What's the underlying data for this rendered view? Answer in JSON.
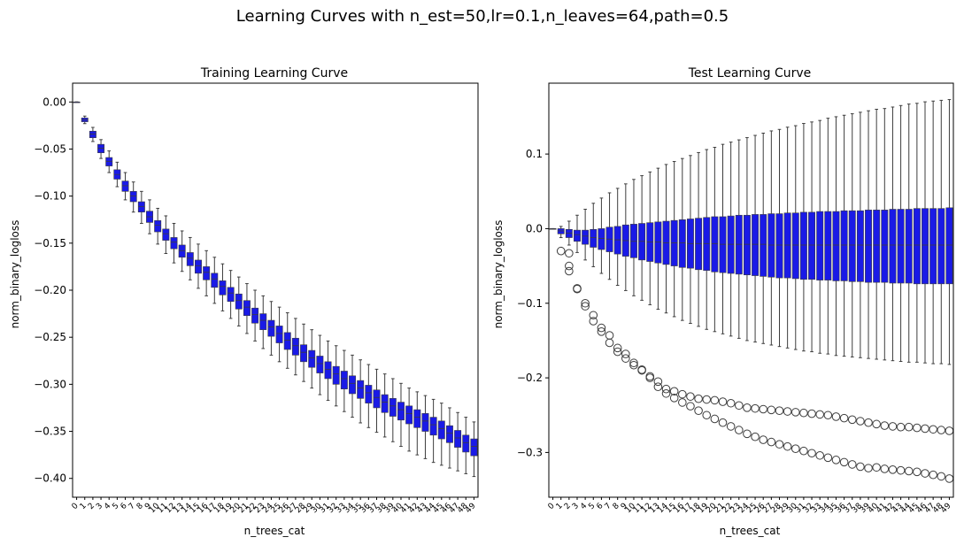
{
  "figure": {
    "title": "Learning Curves with n_est=50,lr=0.1,n_leaves=64,path=0.5"
  },
  "colors": {
    "box_fill": "#1a1ae6",
    "box_edge": "#3d3d3d",
    "axis": "#000000"
  },
  "chart_data": [
    {
      "type": "box",
      "title": "Training Learning Curve",
      "xlabel": "n_trees_cat",
      "ylabel": "norm_binary_logloss",
      "ylim": [
        -0.42,
        0.02
      ],
      "yticks": [
        0.0,
        -0.05,
        -0.1,
        -0.15,
        -0.2,
        -0.25,
        -0.3,
        -0.35,
        -0.4
      ],
      "ytick_labels": [
        "0.00",
        "−0.05",
        "−0.10",
        "−0.15",
        "−0.20",
        "−0.25",
        "−0.30",
        "−0.35",
        "−0.40"
      ],
      "categories": [
        "0",
        "1",
        "2",
        "3",
        "4",
        "5",
        "6",
        "7",
        "8",
        "9",
        "10",
        "11",
        "12",
        "13",
        "14",
        "15",
        "16",
        "17",
        "18",
        "19",
        "20",
        "21",
        "22",
        "23",
        "24",
        "25",
        "26",
        "27",
        "28",
        "29",
        "30",
        "31",
        "32",
        "33",
        "34",
        "35",
        "36",
        "37",
        "38",
        "39",
        "40",
        "41",
        "42",
        "43",
        "44",
        "45",
        "46",
        "47",
        "48",
        "49"
      ],
      "median": [
        0.0,
        -0.019,
        -0.034,
        -0.049,
        -0.063,
        -0.077,
        -0.089,
        -0.1,
        -0.111,
        -0.122,
        -0.131,
        -0.14,
        -0.149,
        -0.158,
        -0.166,
        -0.174,
        -0.181,
        -0.188,
        -0.196,
        -0.203,
        -0.211,
        -0.218,
        -0.226,
        -0.232,
        -0.239,
        -0.246,
        -0.253,
        -0.259,
        -0.266,
        -0.272,
        -0.278,
        -0.284,
        -0.289,
        -0.294,
        -0.299,
        -0.304,
        -0.309,
        -0.314,
        -0.319,
        -0.323,
        -0.327,
        -0.331,
        -0.335,
        -0.339,
        -0.343,
        -0.347,
        -0.352,
        -0.357,
        -0.362,
        -0.366
      ],
      "q1": [
        0.0,
        -0.021,
        -0.038,
        -0.054,
        -0.068,
        -0.082,
        -0.095,
        -0.106,
        -0.117,
        -0.128,
        -0.138,
        -0.147,
        -0.156,
        -0.165,
        -0.174,
        -0.182,
        -0.189,
        -0.197,
        -0.205,
        -0.212,
        -0.22,
        -0.227,
        -0.235,
        -0.242,
        -0.249,
        -0.256,
        -0.263,
        -0.269,
        -0.276,
        -0.282,
        -0.288,
        -0.294,
        -0.3,
        -0.305,
        -0.31,
        -0.315,
        -0.32,
        -0.325,
        -0.33,
        -0.334,
        -0.338,
        -0.342,
        -0.346,
        -0.35,
        -0.354,
        -0.358,
        -0.362,
        -0.367,
        -0.372,
        -0.376
      ],
      "q3": [
        0.0,
        -0.017,
        -0.031,
        -0.045,
        -0.059,
        -0.072,
        -0.084,
        -0.095,
        -0.106,
        -0.116,
        -0.126,
        -0.135,
        -0.144,
        -0.152,
        -0.16,
        -0.168,
        -0.175,
        -0.182,
        -0.19,
        -0.197,
        -0.204,
        -0.211,
        -0.219,
        -0.225,
        -0.232,
        -0.238,
        -0.245,
        -0.251,
        -0.258,
        -0.264,
        -0.27,
        -0.276,
        -0.281,
        -0.286,
        -0.291,
        -0.296,
        -0.301,
        -0.306,
        -0.311,
        -0.315,
        -0.319,
        -0.323,
        -0.327,
        -0.331,
        -0.335,
        -0.339,
        -0.344,
        -0.349,
        -0.354,
        -0.358
      ],
      "whisker_low": [
        0.0,
        -0.023,
        -0.042,
        -0.06,
        -0.075,
        -0.09,
        -0.104,
        -0.117,
        -0.129,
        -0.14,
        -0.151,
        -0.161,
        -0.171,
        -0.18,
        -0.189,
        -0.198,
        -0.206,
        -0.214,
        -0.222,
        -0.23,
        -0.238,
        -0.246,
        -0.254,
        -0.262,
        -0.269,
        -0.276,
        -0.283,
        -0.29,
        -0.297,
        -0.304,
        -0.311,
        -0.317,
        -0.323,
        -0.329,
        -0.335,
        -0.341,
        -0.346,
        -0.351,
        -0.356,
        -0.361,
        -0.366,
        -0.371,
        -0.375,
        -0.379,
        -0.383,
        -0.386,
        -0.389,
        -0.392,
        -0.395,
        -0.398
      ],
      "whisker_high": [
        0.0,
        -0.015,
        -0.027,
        -0.04,
        -0.052,
        -0.064,
        -0.075,
        -0.085,
        -0.095,
        -0.104,
        -0.113,
        -0.121,
        -0.129,
        -0.137,
        -0.144,
        -0.151,
        -0.158,
        -0.165,
        -0.172,
        -0.179,
        -0.186,
        -0.193,
        -0.2,
        -0.206,
        -0.212,
        -0.218,
        -0.224,
        -0.23,
        -0.236,
        -0.242,
        -0.248,
        -0.254,
        -0.259,
        -0.264,
        -0.269,
        -0.274,
        -0.279,
        -0.284,
        -0.289,
        -0.294,
        -0.299,
        -0.304,
        -0.308,
        -0.312,
        -0.316,
        -0.32,
        -0.325,
        -0.33,
        -0.335,
        -0.34
      ]
    },
    {
      "type": "box",
      "title": "Test Learning Curve",
      "xlabel": "n_trees_cat",
      "ylabel": "norm_binary_logloss",
      "ylim": [
        -0.36,
        0.195
      ],
      "yticks": [
        0.1,
        0.0,
        -0.1,
        -0.2,
        -0.3
      ],
      "ytick_labels": [
        "0.1",
        "0.0",
        "−0.1",
        "−0.2",
        "−0.3"
      ],
      "categories": [
        "0",
        "1",
        "2",
        "3",
        "4",
        "5",
        "6",
        "7",
        "8",
        "9",
        "10",
        "11",
        "12",
        "13",
        "14",
        "15",
        "16",
        "17",
        "18",
        "19",
        "20",
        "21",
        "22",
        "23",
        "24",
        "25",
        "26",
        "27",
        "28",
        "29",
        "30",
        "31",
        "32",
        "33",
        "34",
        "35",
        "36",
        "37",
        "38",
        "39",
        "40",
        "41",
        "42",
        "43",
        "44",
        "45",
        "46",
        "47",
        "48",
        "49"
      ],
      "median": [
        0.0,
        -0.003,
        -0.006,
        -0.008,
        -0.01,
        -0.012,
        -0.013,
        -0.014,
        -0.015,
        -0.016,
        -0.017,
        -0.017,
        -0.018,
        -0.018,
        -0.019,
        -0.019,
        -0.019,
        -0.02,
        -0.02,
        -0.02,
        -0.02,
        -0.021,
        -0.021,
        -0.021,
        -0.021,
        -0.021,
        -0.021,
        -0.022,
        -0.022,
        -0.022,
        -0.022,
        -0.022,
        -0.022,
        -0.022,
        -0.022,
        -0.022,
        -0.022,
        -0.022,
        -0.022,
        -0.022,
        -0.022,
        -0.022,
        -0.022,
        -0.022,
        -0.022,
        -0.022,
        -0.022,
        -0.022,
        -0.022,
        -0.022
      ],
      "q1": [
        0.0,
        -0.007,
        -0.012,
        -0.017,
        -0.021,
        -0.025,
        -0.028,
        -0.031,
        -0.034,
        -0.037,
        -0.039,
        -0.042,
        -0.044,
        -0.046,
        -0.048,
        -0.05,
        -0.052,
        -0.053,
        -0.055,
        -0.056,
        -0.058,
        -0.059,
        -0.06,
        -0.061,
        -0.062,
        -0.063,
        -0.064,
        -0.065,
        -0.066,
        -0.066,
        -0.067,
        -0.068,
        -0.068,
        -0.069,
        -0.069,
        -0.07,
        -0.07,
        -0.071,
        -0.071,
        -0.072,
        -0.072,
        -0.072,
        -0.073,
        -0.073,
        -0.073,
        -0.074,
        -0.074,
        -0.074,
        -0.074,
        -0.074
      ],
      "q3": [
        0.0,
        0.0,
        -0.001,
        -0.002,
        -0.002,
        -0.001,
        0.0,
        0.002,
        0.003,
        0.005,
        0.006,
        0.007,
        0.008,
        0.009,
        0.01,
        0.011,
        0.012,
        0.013,
        0.014,
        0.015,
        0.016,
        0.016,
        0.017,
        0.018,
        0.018,
        0.019,
        0.019,
        0.02,
        0.02,
        0.021,
        0.021,
        0.022,
        0.022,
        0.023,
        0.023,
        0.023,
        0.024,
        0.024,
        0.024,
        0.025,
        0.025,
        0.025,
        0.026,
        0.026,
        0.026,
        0.027,
        0.027,
        0.027,
        0.027,
        0.028
      ],
      "whisker_low": [
        0.0,
        -0.012,
        -0.022,
        -0.032,
        -0.042,
        -0.051,
        -0.06,
        -0.068,
        -0.076,
        -0.083,
        -0.09,
        -0.096,
        -0.102,
        -0.108,
        -0.113,
        -0.118,
        -0.123,
        -0.127,
        -0.131,
        -0.135,
        -0.138,
        -0.141,
        -0.144,
        -0.147,
        -0.15,
        -0.152,
        -0.154,
        -0.156,
        -0.158,
        -0.16,
        -0.162,
        -0.164,
        -0.165,
        -0.167,
        -0.168,
        -0.17,
        -0.171,
        -0.172,
        -0.173,
        -0.174,
        -0.175,
        -0.176,
        -0.177,
        -0.178,
        -0.179,
        -0.179,
        -0.18,
        -0.181,
        -0.181,
        -0.182
      ],
      "whisker_high": [
        0.0,
        0.003,
        0.01,
        0.018,
        0.026,
        0.034,
        0.041,
        0.048,
        0.054,
        0.06,
        0.066,
        0.071,
        0.076,
        0.081,
        0.086,
        0.09,
        0.094,
        0.098,
        0.102,
        0.106,
        0.109,
        0.113,
        0.116,
        0.119,
        0.122,
        0.125,
        0.128,
        0.131,
        0.133,
        0.136,
        0.138,
        0.141,
        0.143,
        0.145,
        0.148,
        0.15,
        0.152,
        0.154,
        0.156,
        0.158,
        0.16,
        0.161,
        0.163,
        0.165,
        0.167,
        0.168,
        0.17,
        0.171,
        0.172,
        0.173
      ],
      "outliers": [
        [
          1,
          -0.03
        ],
        [
          2,
          -0.033
        ],
        [
          2,
          -0.05
        ],
        [
          2,
          -0.057
        ],
        [
          3,
          -0.08
        ],
        [
          3,
          -0.081
        ],
        [
          4,
          -0.1
        ],
        [
          4,
          -0.104
        ],
        [
          5,
          -0.116
        ],
        [
          5,
          -0.124
        ],
        [
          6,
          -0.133
        ],
        [
          6,
          -0.138
        ],
        [
          7,
          -0.143
        ],
        [
          7,
          -0.153
        ],
        [
          8,
          -0.16
        ],
        [
          8,
          -0.165
        ],
        [
          9,
          -0.168
        ],
        [
          9,
          -0.174
        ],
        [
          10,
          -0.18
        ],
        [
          10,
          -0.183
        ],
        [
          11,
          -0.19
        ],
        [
          11,
          -0.189
        ],
        [
          12,
          -0.198
        ],
        [
          12,
          -0.2
        ],
        [
          13,
          -0.205
        ],
        [
          13,
          -0.212
        ],
        [
          14,
          -0.215
        ],
        [
          14,
          -0.221
        ],
        [
          15,
          -0.218
        ],
        [
          15,
          -0.227
        ],
        [
          16,
          -0.222
        ],
        [
          16,
          -0.233
        ],
        [
          17,
          -0.225
        ],
        [
          17,
          -0.238
        ],
        [
          18,
          -0.228
        ],
        [
          18,
          -0.244
        ],
        [
          19,
          -0.229
        ],
        [
          19,
          -0.25
        ],
        [
          20,
          -0.23
        ],
        [
          20,
          -0.255
        ],
        [
          21,
          -0.232
        ],
        [
          21,
          -0.26
        ],
        [
          22,
          -0.234
        ],
        [
          22,
          -0.265
        ],
        [
          23,
          -0.237
        ],
        [
          23,
          -0.27
        ],
        [
          24,
          -0.24
        ],
        [
          24,
          -0.275
        ],
        [
          25,
          -0.241
        ],
        [
          25,
          -0.279
        ],
        [
          26,
          -0.242
        ],
        [
          26,
          -0.283
        ],
        [
          27,
          -0.243
        ],
        [
          27,
          -0.286
        ],
        [
          28,
          -0.244
        ],
        [
          28,
          -0.289
        ],
        [
          29,
          -0.245
        ],
        [
          29,
          -0.292
        ],
        [
          30,
          -0.246
        ],
        [
          30,
          -0.295
        ],
        [
          31,
          -0.247
        ],
        [
          31,
          -0.298
        ],
        [
          32,
          -0.248
        ],
        [
          32,
          -0.301
        ],
        [
          33,
          -0.249
        ],
        [
          33,
          -0.304
        ],
        [
          34,
          -0.25
        ],
        [
          34,
          -0.307
        ],
        [
          35,
          -0.252
        ],
        [
          35,
          -0.31
        ],
        [
          36,
          -0.254
        ],
        [
          36,
          -0.313
        ],
        [
          37,
          -0.256
        ],
        [
          37,
          -0.316
        ],
        [
          38,
          -0.258
        ],
        [
          38,
          -0.319
        ],
        [
          39,
          -0.26
        ],
        [
          39,
          -0.321
        ],
        [
          40,
          -0.262
        ],
        [
          40,
          -0.32
        ],
        [
          41,
          -0.264
        ],
        [
          41,
          -0.322
        ],
        [
          42,
          -0.265
        ],
        [
          42,
          -0.323
        ],
        [
          43,
          -0.266
        ],
        [
          43,
          -0.324
        ],
        [
          44,
          -0.266
        ],
        [
          44,
          -0.325
        ],
        [
          45,
          -0.267
        ],
        [
          45,
          -0.326
        ],
        [
          46,
          -0.268
        ],
        [
          46,
          -0.328
        ],
        [
          47,
          -0.269
        ],
        [
          47,
          -0.33
        ],
        [
          48,
          -0.27
        ],
        [
          48,
          -0.332
        ],
        [
          49,
          -0.271
        ],
        [
          49,
          -0.335
        ]
      ]
    }
  ]
}
